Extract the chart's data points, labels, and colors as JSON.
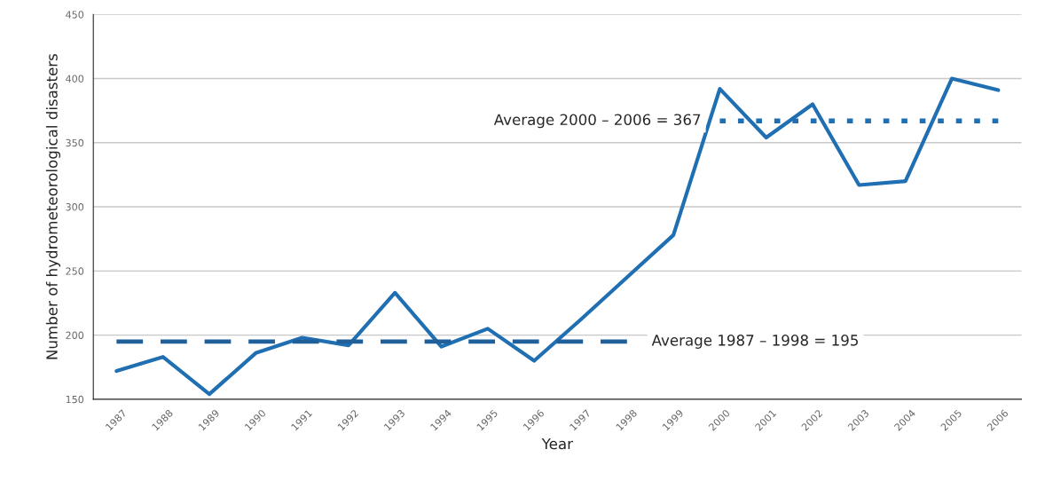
{
  "chart_data": {
    "type": "line",
    "xlabel": "Year",
    "ylabel": "Number of hydrometeorological disasters",
    "categories": [
      "1987",
      "1988",
      "1989",
      "1990",
      "1991",
      "1992",
      "1993",
      "1994",
      "1995",
      "1996",
      "1997",
      "1998",
      "1999",
      "2000",
      "2001",
      "2002",
      "2003",
      "2004",
      "2005",
      "2006"
    ],
    "series": [
      {
        "color": "#1f6fb2",
        "line_style": "solid",
        "values": [
          172,
          183,
          154,
          186,
          198,
          192,
          233,
          191,
          205,
          180,
          212,
          245,
          278,
          392,
          354,
          380,
          317,
          320,
          400,
          391
        ]
      },
      {
        "color": "#1f5f9a",
        "line_style": "dashed",
        "values": [
          195,
          195,
          195,
          195,
          195,
          195,
          195,
          195,
          195,
          195,
          195,
          195,
          null,
          null,
          null,
          null,
          null,
          null,
          null,
          null
        ]
      },
      {
        "color": "#1f6fb2",
        "line_style": "dotted",
        "values": [
          null,
          null,
          null,
          null,
          null,
          null,
          null,
          null,
          null,
          null,
          null,
          null,
          null,
          367,
          367,
          367,
          367,
          367,
          367,
          367
        ]
      }
    ],
    "annotations": [
      {
        "text": "Average 1987 – 1998 = 195",
        "x": "1998",
        "y": 195
      },
      {
        "text": "Average 2000 – 2006 = 367",
        "x": "2000",
        "y": 367
      }
    ],
    "ylim": [
      150,
      450
    ],
    "yticks": [
      150,
      200,
      250,
      300,
      350,
      400,
      450
    ],
    "grid": "y",
    "legend": false
  }
}
